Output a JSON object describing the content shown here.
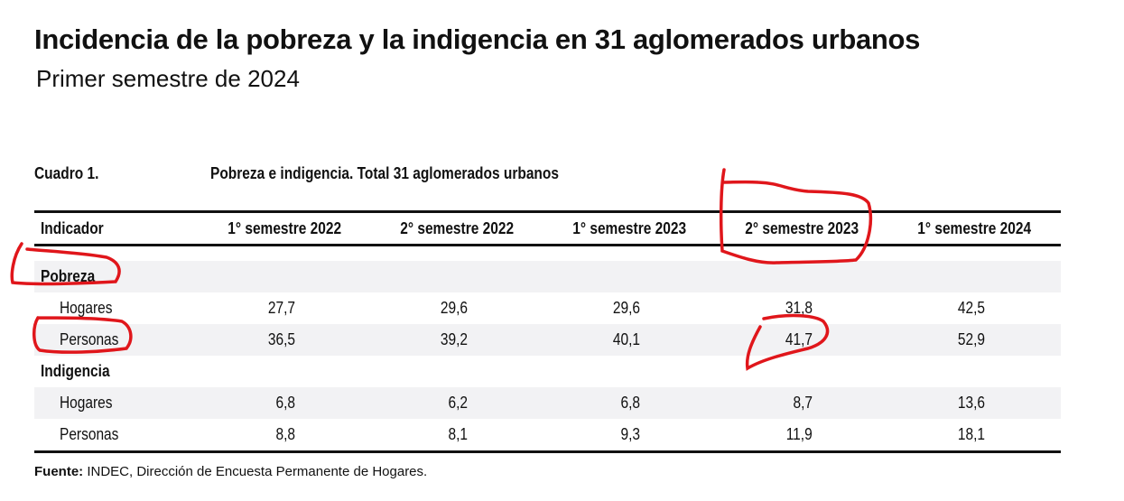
{
  "title": "Incidencia de la pobreza y la indigencia en 31 aglomerados urbanos",
  "subtitle": "Primer semestre de 2024",
  "table": {
    "caption_number": "Cuadro 1.",
    "caption_text": "Pobreza e indigencia. Total 31 aglomerados urbanos",
    "headers": [
      "Indicador",
      "1° semestre 2022",
      "2° semestre 2022",
      "1° semestre 2023",
      "2° semestre 2023",
      "1° semestre 2024"
    ],
    "groups": [
      {
        "label": "Pobreza",
        "rows": [
          {
            "label": "Hogares",
            "values": [
              "27,7",
              "29,6",
              "29,6",
              "31,8",
              "42,5"
            ]
          },
          {
            "label": "Personas",
            "values": [
              "36,5",
              "39,2",
              "40,1",
              "41,7",
              "52,9"
            ]
          }
        ]
      },
      {
        "label": "Indigencia",
        "rows": [
          {
            "label": "Hogares",
            "values": [
              "6,8",
              "6,2",
              "6,8",
              "8,7",
              "13,6"
            ]
          },
          {
            "label": "Personas",
            "values": [
              "8,8",
              "8,1",
              "9,3",
              "11,9",
              "18,1"
            ]
          }
        ]
      }
    ]
  },
  "source": {
    "label": "Fuente:",
    "text": " INDEC, Dirección de Encuesta Permanente de Hogares."
  },
  "colors": {
    "annotation": "#e0161b",
    "shade": "#f2f2f4"
  }
}
